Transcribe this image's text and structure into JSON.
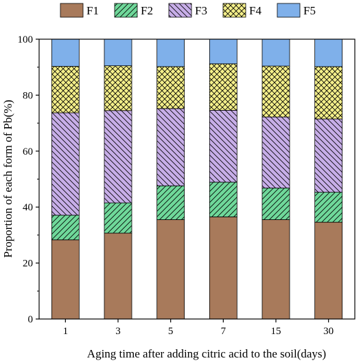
{
  "chart_data": {
    "type": "bar",
    "stacked": true,
    "categories": [
      "1",
      "3",
      "5",
      "7",
      "15",
      "30"
    ],
    "series": [
      {
        "name": "F1",
        "values": [
          28.3,
          30.7,
          35.5,
          36.5,
          35.5,
          34.6
        ],
        "color": "#a87a5b",
        "pattern": "solid"
      },
      {
        "name": "F2",
        "values": [
          8.8,
          10.8,
          12.1,
          12.4,
          11.3,
          10.7
        ],
        "color": "#6fd89a",
        "pattern": "diagonal-right"
      },
      {
        "name": "F3",
        "values": [
          36.6,
          33.0,
          27.6,
          25.7,
          25.4,
          26.2
        ],
        "color": "#c7aee8",
        "pattern": "diagonal-left"
      },
      {
        "name": "F4",
        "values": [
          16.6,
          16.0,
          15.0,
          16.6,
          18.2,
          18.7
        ],
        "color": "#f4ef8a",
        "pattern": "crosshatch"
      },
      {
        "name": "F5",
        "values": [
          9.7,
          9.5,
          9.8,
          8.8,
          9.6,
          9.8
        ],
        "color": "#7fb0ea",
        "pattern": "solid"
      }
    ],
    "xlabel": "Aging time after adding citric acid to the soil(days)",
    "ylabel": "Proportion of each form of Pb(%)",
    "ylim": [
      0,
      100
    ],
    "yticks": [
      0,
      20,
      40,
      60,
      80,
      100
    ],
    "legend_position": "top",
    "grid": false
  }
}
